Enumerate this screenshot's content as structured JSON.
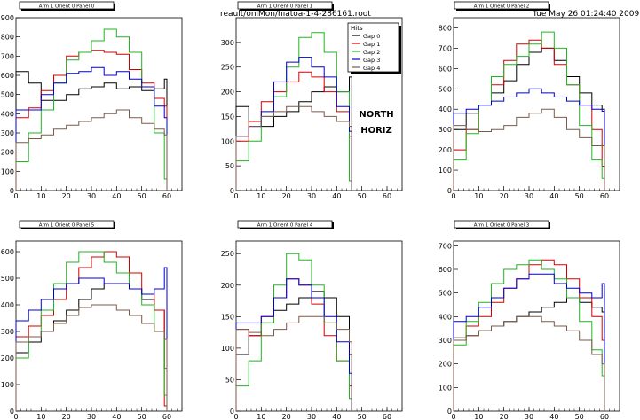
{
  "header": {
    "file": "reault/onlMon/hiatoa-1-4-286161.root",
    "datetime": "Tue May 26 01:24:40 2009"
  },
  "legend": {
    "title": "Hits",
    "entries": [
      "Gap 0",
      "Gap 1",
      "Gap 2",
      "Gap 3",
      "Gap 4"
    ]
  },
  "annotation": [
    "NORTH",
    "HORIZ"
  ],
  "colors": {
    "Gap 0": "#000000",
    "Gap 1": "#d10000",
    "Gap 2": "#22b322",
    "Gap 3": "#0000cc",
    "Gap 4": "#7a5a4a"
  },
  "chart_data": [
    {
      "type": "line",
      "title": "Arm 1 Orient 0 Panel 0",
      "xlim": [
        0,
        66
      ],
      "ylim": [
        0,
        900
      ],
      "xticks": [
        "0",
        "10",
        "20",
        "30",
        "40",
        "50",
        "60"
      ],
      "yticks": [
        "0",
        "100",
        "200",
        "300",
        "400",
        "500",
        "600",
        "700",
        "800",
        "900"
      ],
      "series": [
        {
          "name": "Gap 0",
          "x": [
            0,
            5,
            10,
            15,
            20,
            25,
            30,
            35,
            40,
            45,
            50,
            55,
            59
          ],
          "values": [
            620,
            560,
            470,
            470,
            500,
            530,
            540,
            560,
            530,
            540,
            520,
            530,
            580
          ]
        },
        {
          "name": "Gap 1",
          "x": [
            0,
            5,
            10,
            15,
            20,
            25,
            30,
            35,
            40,
            45,
            50,
            55,
            59
          ],
          "values": [
            380,
            430,
            520,
            600,
            700,
            720,
            730,
            720,
            710,
            630,
            560,
            480,
            440
          ]
        },
        {
          "name": "Gap 2",
          "x": [
            0,
            5,
            10,
            15,
            20,
            25,
            30,
            35,
            40,
            45,
            50,
            55,
            59
          ],
          "values": [
            150,
            300,
            420,
            560,
            680,
            720,
            780,
            840,
            800,
            720,
            540,
            300,
            60
          ]
        },
        {
          "name": "Gap 3",
          "x": [
            0,
            5,
            10,
            15,
            20,
            25,
            30,
            35,
            40,
            45,
            50,
            55,
            59
          ],
          "values": [
            420,
            420,
            500,
            560,
            610,
            620,
            640,
            600,
            620,
            580,
            540,
            440,
            380
          ]
        },
        {
          "name": "Gap 4",
          "x": [
            0,
            5,
            10,
            15,
            20,
            25,
            30,
            35,
            40,
            45,
            50,
            55,
            59
          ],
          "values": [
            250,
            270,
            290,
            320,
            340,
            360,
            380,
            400,
            420,
            380,
            350,
            320,
            290
          ]
        }
      ]
    },
    {
      "type": "line",
      "title": "Arm 1 Orient 0 Panel 1",
      "xlim": [
        0,
        66
      ],
      "ylim": [
        0,
        350
      ],
      "xticks": [
        "0",
        "10",
        "20",
        "30",
        "40",
        "50",
        "60"
      ],
      "yticks": [
        "0",
        "50",
        "100",
        "150",
        "200",
        "250",
        "300"
      ],
      "series": [
        {
          "name": "Gap 0",
          "x": [
            0,
            5,
            10,
            15,
            20,
            25,
            30,
            35,
            40,
            45
          ],
          "values": [
            170,
            140,
            130,
            150,
            160,
            180,
            200,
            210,
            200,
            230
          ]
        },
        {
          "name": "Gap 1",
          "x": [
            0,
            5,
            10,
            15,
            20,
            25,
            30,
            35,
            40,
            45
          ],
          "values": [
            100,
            140,
            180,
            200,
            220,
            240,
            230,
            200,
            160,
            110
          ]
        },
        {
          "name": "Gap 2",
          "x": [
            0,
            5,
            10,
            15,
            20,
            25,
            30,
            35,
            40,
            45
          ],
          "values": [
            60,
            100,
            150,
            190,
            250,
            310,
            320,
            280,
            200,
            20
          ]
        },
        {
          "name": "Gap 3",
          "x": [
            0,
            5,
            10,
            15,
            20,
            25,
            30,
            35,
            40,
            45
          ],
          "values": [
            110,
            130,
            160,
            220,
            260,
            270,
            250,
            230,
            170,
            120
          ]
        },
        {
          "name": "Gap 4",
          "x": [
            0,
            5,
            10,
            15,
            20,
            25,
            30,
            35,
            40,
            45
          ],
          "values": [
            110,
            130,
            150,
            160,
            170,
            170,
            160,
            150,
            140,
            130
          ]
        }
      ]
    },
    {
      "type": "line",
      "title": "Arm 1 Orient 0 Panel 2",
      "xlim": [
        0,
        66
      ],
      "ylim": [
        0,
        850
      ],
      "xticks": [
        "0",
        "10",
        "20",
        "30",
        "40",
        "50",
        "60"
      ],
      "yticks": [
        "0",
        "100",
        "200",
        "300",
        "400",
        "500",
        "600",
        "700",
        "800"
      ],
      "series": [
        {
          "name": "Gap 0",
          "x": [
            0,
            5,
            10,
            15,
            20,
            25,
            30,
            35,
            40,
            45,
            50,
            55,
            59
          ],
          "values": [
            300,
            380,
            420,
            480,
            540,
            620,
            680,
            700,
            640,
            560,
            480,
            420,
            400
          ]
        },
        {
          "name": "Gap 1",
          "x": [
            0,
            5,
            10,
            15,
            20,
            25,
            30,
            35,
            40,
            45,
            50,
            55,
            59
          ],
          "values": [
            200,
            300,
            420,
            520,
            640,
            720,
            740,
            700,
            620,
            520,
            420,
            300,
            120
          ]
        },
        {
          "name": "Gap 2",
          "x": [
            0,
            5,
            10,
            15,
            20,
            25,
            30,
            35,
            40,
            45,
            50,
            55,
            59
          ],
          "values": [
            150,
            280,
            420,
            560,
            620,
            660,
            720,
            780,
            700,
            520,
            320,
            150,
            60
          ]
        },
        {
          "name": "Gap 3",
          "x": [
            0,
            5,
            10,
            15,
            20,
            25,
            30,
            35,
            40,
            45,
            50,
            55,
            59
          ],
          "values": [
            380,
            400,
            420,
            440,
            460,
            480,
            500,
            480,
            460,
            440,
            420,
            400,
            390
          ]
        },
        {
          "name": "Gap 4",
          "x": [
            0,
            5,
            10,
            15,
            20,
            25,
            30,
            35,
            40,
            45,
            50,
            55,
            59
          ],
          "values": [
            320,
            300,
            290,
            300,
            320,
            360,
            380,
            400,
            360,
            300,
            260,
            220,
            220
          ]
        }
      ]
    },
    {
      "type": "line",
      "title": "Arm 1 Orient 0 Panel 5",
      "xlim": [
        0,
        66
      ],
      "ylim": [
        0,
        640
      ],
      "xticks": [
        "0",
        "10",
        "20",
        "30",
        "40",
        "50",
        "60"
      ],
      "yticks": [
        "0",
        "100",
        "200",
        "300",
        "400",
        "500",
        "600"
      ],
      "series": [
        {
          "name": "Gap 0",
          "x": [
            0,
            5,
            10,
            15,
            20,
            25,
            30,
            35,
            40,
            45,
            50,
            55,
            59
          ],
          "values": [
            220,
            260,
            300,
            340,
            380,
            420,
            460,
            480,
            480,
            460,
            420,
            380,
            160
          ]
        },
        {
          "name": "Gap 1",
          "x": [
            0,
            5,
            10,
            15,
            20,
            25,
            30,
            35,
            40,
            45,
            50,
            55,
            59
          ],
          "values": [
            280,
            320,
            360,
            420,
            480,
            540,
            580,
            600,
            580,
            520,
            440,
            380,
            20
          ]
        },
        {
          "name": "Gap 2",
          "x": [
            0,
            5,
            10,
            15,
            20,
            25,
            30,
            35,
            40,
            45,
            50,
            55,
            59
          ],
          "values": [
            200,
            280,
            380,
            480,
            560,
            600,
            600,
            560,
            520,
            460,
            400,
            300,
            60
          ]
        },
        {
          "name": "Gap 3",
          "x": [
            0,
            5,
            10,
            15,
            20,
            25,
            30,
            35,
            40,
            45,
            50,
            55,
            59
          ],
          "values": [
            340,
            380,
            420,
            460,
            480,
            500,
            500,
            480,
            480,
            460,
            440,
            460,
            540
          ]
        },
        {
          "name": "Gap 4",
          "x": [
            0,
            5,
            10,
            15,
            20,
            25,
            30,
            35,
            40,
            45,
            50,
            55,
            59
          ],
          "values": [
            260,
            280,
            300,
            330,
            360,
            390,
            400,
            400,
            380,
            360,
            330,
            300,
            270
          ]
        }
      ]
    },
    {
      "type": "line",
      "title": "Arm 1 Orient 0 Panel 4",
      "xlim": [
        0,
        66
      ],
      "ylim": [
        0,
        270
      ],
      "xticks": [
        "0",
        "10",
        "20",
        "30",
        "40",
        "50",
        "60"
      ],
      "yticks": [
        "0",
        "50",
        "100",
        "150",
        "200",
        "250"
      ],
      "series": [
        {
          "name": "Gap 0",
          "x": [
            0,
            5,
            10,
            15,
            20,
            25,
            30,
            35,
            40,
            45
          ],
          "values": [
            90,
            120,
            140,
            160,
            170,
            180,
            190,
            180,
            150,
            90
          ]
        },
        {
          "name": "Gap 1",
          "x": [
            0,
            5,
            10,
            15,
            20,
            25,
            30,
            35,
            40,
            45
          ],
          "values": [
            130,
            120,
            150,
            180,
            210,
            200,
            170,
            120,
            80,
            40
          ]
        },
        {
          "name": "Gap 2",
          "x": [
            0,
            5,
            10,
            15,
            20,
            25,
            30,
            35,
            40,
            45
          ],
          "values": [
            40,
            80,
            140,
            200,
            250,
            240,
            200,
            140,
            80,
            20
          ]
        },
        {
          "name": "Gap 3",
          "x": [
            0,
            5,
            10,
            15,
            20,
            25,
            30,
            35,
            40,
            45
          ],
          "values": [
            140,
            140,
            150,
            180,
            210,
            200,
            180,
            150,
            110,
            60
          ]
        },
        {
          "name": "Gap 4",
          "x": [
            0,
            5,
            10,
            15,
            20,
            25,
            30,
            35,
            40,
            45
          ],
          "values": [
            130,
            125,
            120,
            130,
            140,
            150,
            150,
            140,
            130,
            110
          ]
        }
      ]
    },
    {
      "type": "line",
      "title": "Arm 1 Orient 0 Panel 3",
      "xlim": [
        0,
        66
      ],
      "ylim": [
        0,
        720
      ],
      "xticks": [
        "0",
        "10",
        "20",
        "30",
        "40",
        "50",
        "60"
      ],
      "yticks": [
        "0",
        "100",
        "200",
        "300",
        "400",
        "500",
        "600",
        "700"
      ],
      "series": [
        {
          "name": "Gap 0",
          "x": [
            0,
            5,
            10,
            15,
            20,
            25,
            30,
            35,
            40,
            45,
            50,
            55,
            59
          ],
          "values": [
            310,
            320,
            340,
            360,
            380,
            400,
            420,
            440,
            460,
            480,
            460,
            440,
            420
          ]
        },
        {
          "name": "Gap 1",
          "x": [
            0,
            5,
            10,
            15,
            20,
            25,
            30,
            35,
            40,
            45,
            50,
            55,
            59
          ],
          "values": [
            300,
            360,
            400,
            460,
            520,
            560,
            620,
            640,
            620,
            560,
            480,
            400,
            300
          ]
        },
        {
          "name": "Gap 2",
          "x": [
            0,
            5,
            10,
            15,
            20,
            25,
            30,
            35,
            40,
            45,
            50,
            55,
            59
          ],
          "values": [
            280,
            380,
            460,
            540,
            600,
            620,
            640,
            600,
            560,
            480,
            380,
            260,
            150
          ]
        },
        {
          "name": "Gap 3",
          "x": [
            0,
            5,
            10,
            15,
            20,
            25,
            30,
            35,
            40,
            45,
            50,
            55,
            59
          ],
          "values": [
            380,
            400,
            440,
            480,
            520,
            560,
            580,
            580,
            540,
            520,
            500,
            480,
            540
          ]
        },
        {
          "name": "Gap 4",
          "x": [
            0,
            5,
            10,
            15,
            20,
            25,
            30,
            35,
            40,
            45,
            50,
            55,
            59
          ],
          "values": [
            300,
            320,
            340,
            360,
            380,
            400,
            400,
            380,
            360,
            340,
            300,
            240,
            200
          ]
        }
      ]
    }
  ]
}
